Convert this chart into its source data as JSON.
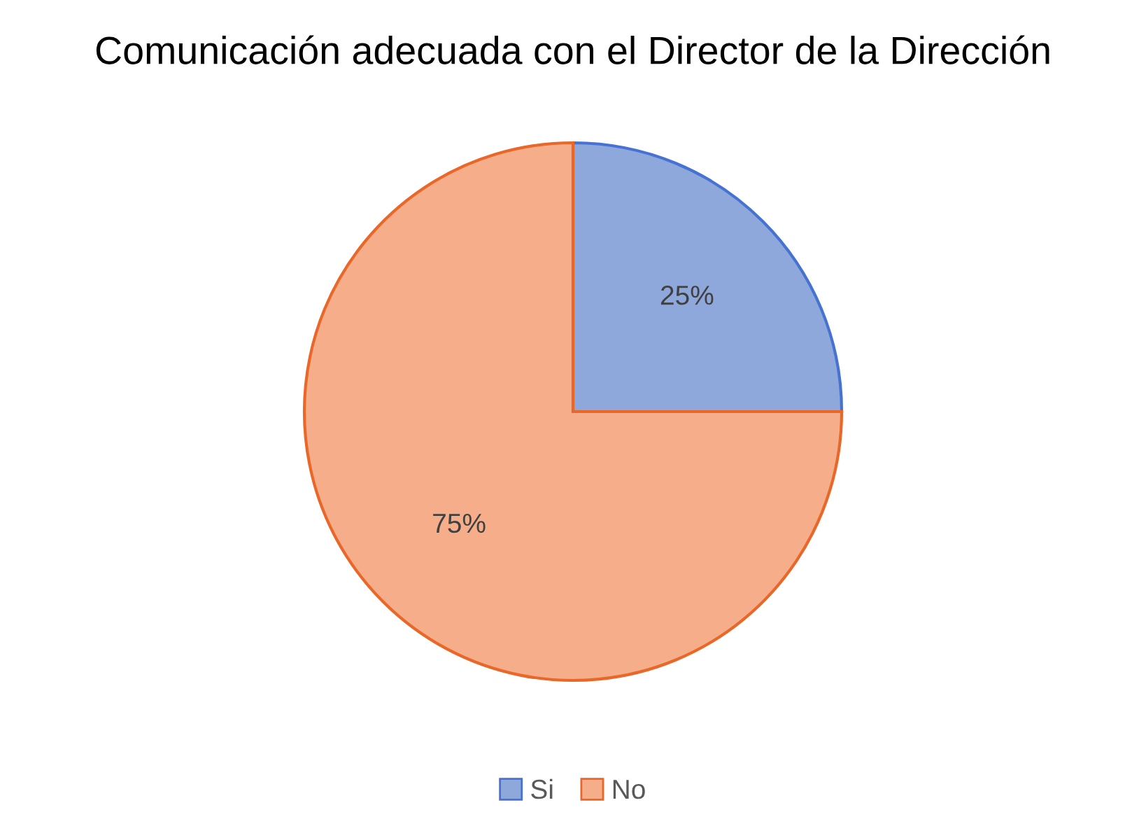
{
  "chart_data": {
    "type": "pie",
    "title": "Comunicación adecuada con el Director de la Dirección",
    "categories": [
      "Si",
      "No"
    ],
    "values": [
      25,
      75
    ],
    "colors": [
      "#8fa8dc",
      "#f5ad8a"
    ],
    "value_labels": [
      "25%",
      "75%"
    ],
    "legend": "bottom"
  }
}
